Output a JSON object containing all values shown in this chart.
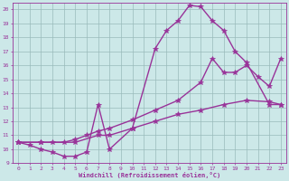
{
  "line1_x": [
    0,
    1,
    2,
    3,
    4,
    5,
    6,
    7,
    8,
    10,
    12,
    13,
    14,
    15,
    16,
    17,
    18,
    19,
    20,
    22,
    23
  ],
  "line1_y": [
    10.5,
    10.3,
    10.0,
    9.8,
    9.5,
    9.5,
    9.8,
    13.2,
    10.0,
    11.5,
    17.2,
    18.5,
    19.2,
    20.3,
    20.2,
    19.2,
    18.5,
    17.0,
    16.2,
    13.2,
    13.2
  ],
  "line2_x": [
    0,
    2,
    3,
    4,
    5,
    6,
    7,
    8,
    10,
    12,
    14,
    16,
    17,
    18,
    19,
    20,
    21,
    22,
    23
  ],
  "line2_y": [
    10.5,
    10.5,
    10.5,
    10.5,
    10.7,
    11.0,
    11.3,
    11.5,
    12.1,
    12.8,
    13.5,
    14.8,
    16.5,
    15.5,
    15.5,
    16.0,
    15.2,
    14.5,
    16.5
  ],
  "line3_x": [
    0,
    2,
    5,
    7,
    8,
    10,
    12,
    14,
    16,
    18,
    20,
    22,
    23
  ],
  "line3_y": [
    10.5,
    10.5,
    10.5,
    11.0,
    11.0,
    11.5,
    12.0,
    12.5,
    12.8,
    13.2,
    13.5,
    13.4,
    13.2
  ],
  "line_color": "#993399",
  "bg_color": "#cce8e8",
  "grid_color": "#99bbbb",
  "xlabel": "Windchill (Refroidissement éolien,°C)",
  "xlim": [
    -0.5,
    23.5
  ],
  "ylim": [
    9,
    20.5
  ],
  "xticks": [
    0,
    1,
    2,
    3,
    4,
    5,
    6,
    7,
    8,
    9,
    10,
    11,
    12,
    13,
    14,
    15,
    16,
    17,
    18,
    19,
    20,
    21,
    22,
    23
  ],
  "yticks": [
    9,
    10,
    11,
    12,
    13,
    14,
    15,
    16,
    17,
    18,
    19,
    20
  ],
  "marker": "*",
  "markersize": 4,
  "linewidth": 1.0
}
